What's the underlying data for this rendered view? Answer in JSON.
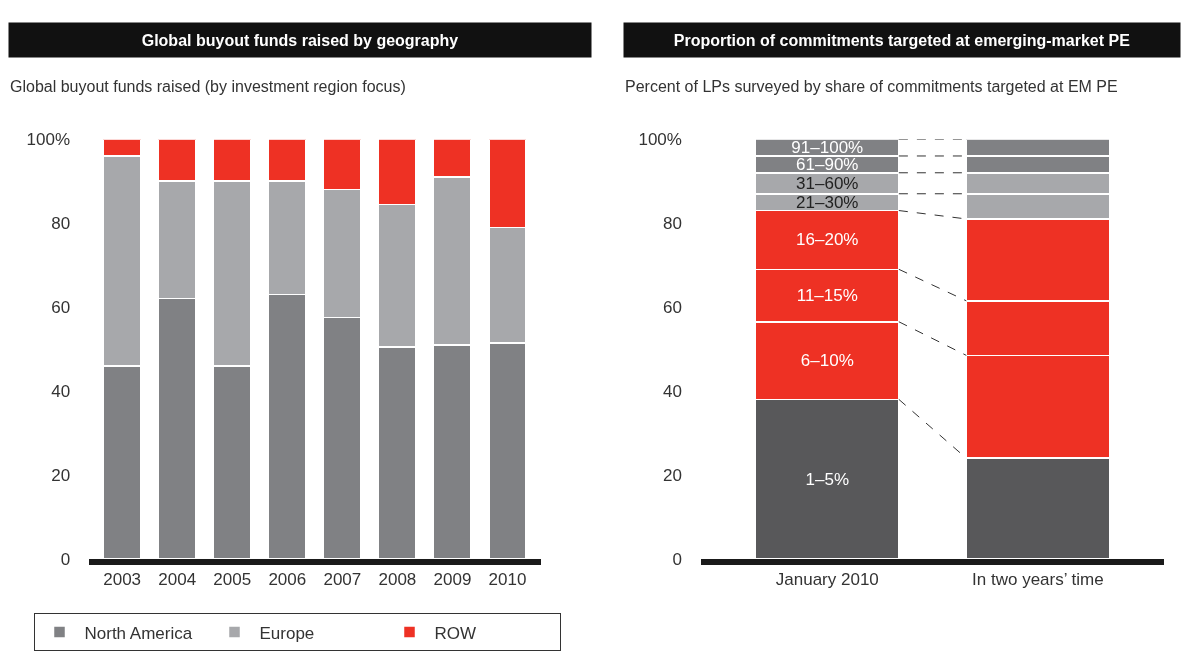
{
  "chart_data": [
    {
      "type": "bar",
      "stacked": true,
      "title": "Global buyout funds raised by geography",
      "subtitle": "Global buyout funds raised (by investment region focus)",
      "categories": [
        "2003",
        "2004",
        "2005",
        "2006",
        "2007",
        "2008",
        "2009",
        "2010"
      ],
      "series": [
        {
          "name": "North America",
          "color": "#808184",
          "values": [
            46,
            62,
            46,
            63,
            57.5,
            50.5,
            51,
            51.5
          ]
        },
        {
          "name": "Europe",
          "color": "#a7a8ab",
          "values": [
            50,
            28,
            44,
            27,
            30.5,
            34,
            40,
            27.5
          ]
        },
        {
          "name": "ROW",
          "color": "#ee3124",
          "values": [
            4,
            10,
            10,
            10,
            12,
            15.5,
            9,
            21
          ]
        }
      ],
      "ylim": [
        0,
        100
      ],
      "yticks": [
        0,
        20,
        40,
        60,
        80,
        {
          "value": 100,
          "label": "100%"
        }
      ],
      "legend": "bottom"
    },
    {
      "type": "bar",
      "stacked": true,
      "title": "Proportion of commitments targeted at emerging-market PE",
      "subtitle": "Percent of LPs surveyed by share of commitments targeted at EM PE",
      "categories": [
        "January 2010",
        "In two years’ time"
      ],
      "series": [
        {
          "name": "1–5%",
          "color": "#58585a",
          "values": [
            38,
            24
          ]
        },
        {
          "name": "6–10%",
          "color": "#ee3124",
          "values": [
            18.5,
            24.5
          ]
        },
        {
          "name": "11–15%",
          "color": "#ee3124",
          "values": [
            12.5,
            13
          ]
        },
        {
          "name": "16–20%",
          "color": "#ee3124",
          "values": [
            14,
            19.5
          ]
        },
        {
          "name": "21–30%",
          "color": "#a7a8ab",
          "values": [
            4,
            6
          ]
        },
        {
          "name": "31–60%",
          "color": "#a7a8ab",
          "values": [
            5,
            5
          ]
        },
        {
          "name": "61–90%",
          "color": "#808184",
          "values": [
            4,
            4
          ]
        },
        {
          "name": "91–100%",
          "color": "#808184",
          "values": [
            4,
            4
          ]
        }
      ],
      "ylim": [
        0,
        100
      ],
      "yticks": [
        0,
        20,
        40,
        60,
        80,
        {
          "value": 100,
          "label": "100%"
        }
      ]
    }
  ]
}
